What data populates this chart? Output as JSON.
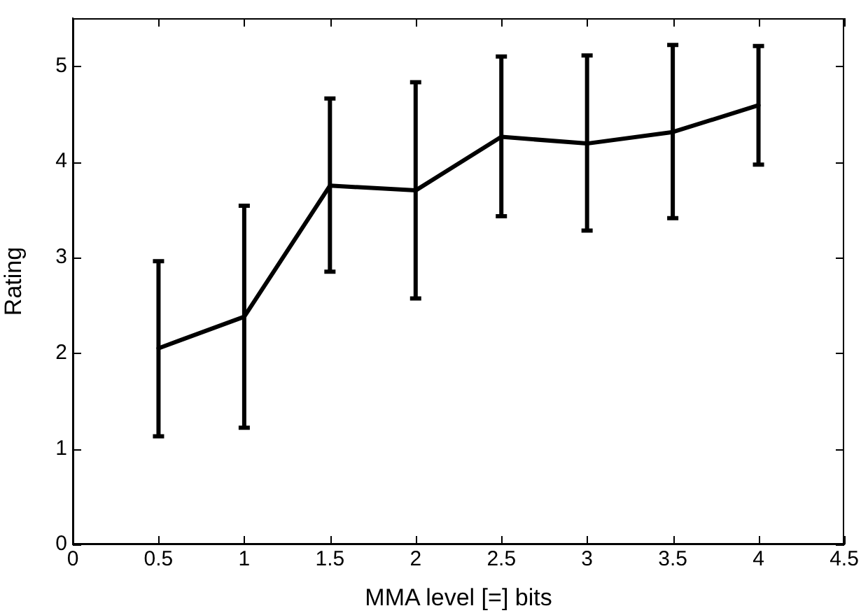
{
  "chart_data": {
    "type": "line",
    "xlabel": "MMA level [=] bits",
    "ylabel": "Rating",
    "x": [
      0.5,
      1,
      1.5,
      2,
      2.5,
      3,
      3.5,
      4
    ],
    "series": [
      {
        "color": "#000000",
        "values": [
          2.05,
          2.38,
          3.75,
          3.7,
          4.26,
          4.19,
          4.31,
          4.59
        ],
        "errors": [
          [
            1.13,
            2.96
          ],
          [
            1.22,
            3.54
          ],
          [
            2.85,
            4.66
          ],
          [
            2.57,
            4.83
          ],
          [
            3.43,
            5.1
          ],
          [
            3.28,
            5.11
          ],
          [
            3.41,
            5.22
          ],
          [
            3.97,
            5.21
          ]
        ]
      }
    ],
    "xlim": [
      0,
      4.5
    ],
    "xticks": [
      0,
      0.5,
      1,
      1.5,
      2,
      2.5,
      3,
      3.5,
      4,
      4.5
    ],
    "ylim": [
      0,
      5.5
    ],
    "yticks": [
      0,
      1,
      2,
      3,
      4,
      5
    ],
    "grid": false,
    "legend": false,
    "marker": "none",
    "line_style": "solid"
  }
}
